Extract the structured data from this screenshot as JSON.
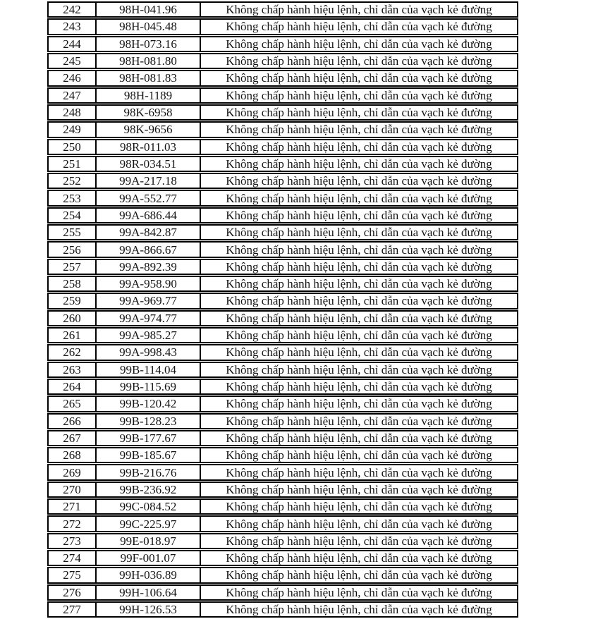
{
  "colors": {
    "background": "#ffffff",
    "border": "#000000",
    "text": "#141414"
  },
  "table": {
    "violation_text": "Không chấp hành hiệu lệnh, chỉ dẫn của vạch kẻ đường",
    "rows": [
      {
        "no": "242",
        "plate": "98H-041.96"
      },
      {
        "no": "243",
        "plate": "98H-045.48"
      },
      {
        "no": "244",
        "plate": "98H-073.16"
      },
      {
        "no": "245",
        "plate": "98H-081.80"
      },
      {
        "no": "246",
        "plate": "98H-081.83"
      },
      {
        "no": "247",
        "plate": "98H-1189"
      },
      {
        "no": "248",
        "plate": "98K-6958"
      },
      {
        "no": "249",
        "plate": "98K-9656"
      },
      {
        "no": "250",
        "plate": "98R-011.03"
      },
      {
        "no": "251",
        "plate": "98R-034.51"
      },
      {
        "no": "252",
        "plate": "99A-217.18"
      },
      {
        "no": "253",
        "plate": "99A-552.77"
      },
      {
        "no": "254",
        "plate": "99A-686.44"
      },
      {
        "no": "255",
        "plate": "99A-842.87"
      },
      {
        "no": "256",
        "plate": "99A-866.67"
      },
      {
        "no": "257",
        "plate": "99A-892.39"
      },
      {
        "no": "258",
        "plate": "99A-958.90"
      },
      {
        "no": "259",
        "plate": "99A-969.77"
      },
      {
        "no": "260",
        "plate": "99A-974.77"
      },
      {
        "no": "261",
        "plate": "99A-985.27"
      },
      {
        "no": "262",
        "plate": "99A-998.43"
      },
      {
        "no": "263",
        "plate": "99B-114.04"
      },
      {
        "no": "264",
        "plate": "99B-115.69"
      },
      {
        "no": "265",
        "plate": "99B-120.42"
      },
      {
        "no": "266",
        "plate": "99B-128.23"
      },
      {
        "no": "267",
        "plate": "99B-177.67"
      },
      {
        "no": "268",
        "plate": "99B-185.67"
      },
      {
        "no": "269",
        "plate": "99B-216.76"
      },
      {
        "no": "270",
        "plate": "99B-236.92"
      },
      {
        "no": "271",
        "plate": "99C-084.52"
      },
      {
        "no": "272",
        "plate": "99C-225.97"
      },
      {
        "no": "273",
        "plate": "99E-018.97"
      },
      {
        "no": "274",
        "plate": "99F-001.07"
      },
      {
        "no": "275",
        "plate": "99H-036.89"
      },
      {
        "no": "276",
        "plate": "99H-106.64"
      },
      {
        "no": "277",
        "plate": "99H-126.53"
      }
    ]
  }
}
